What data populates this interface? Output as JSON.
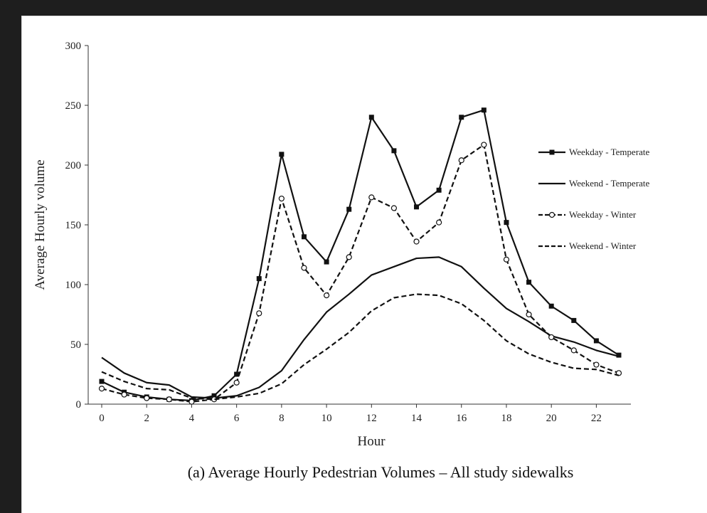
{
  "caption": "(a) Average Hourly Pedestrian Volumes – All study sidewalks",
  "chart_data": {
    "type": "line",
    "xlabel": "Hour",
    "ylabel": "Average Hourly volume",
    "xlim": [
      0,
      23
    ],
    "ylim": [
      0,
      300
    ],
    "x_ticks": [
      0,
      2,
      4,
      6,
      8,
      10,
      12,
      14,
      16,
      18,
      20,
      22
    ],
    "y_ticks": [
      0,
      50,
      100,
      150,
      200,
      250,
      300
    ],
    "grid": false,
    "legend_position": "right",
    "x": [
      0,
      1,
      2,
      3,
      4,
      5,
      6,
      7,
      8,
      9,
      10,
      11,
      12,
      13,
      14,
      15,
      16,
      17,
      18,
      19,
      20,
      21,
      22,
      23
    ],
    "series": [
      {
        "name": "Weekday - Temperate",
        "style": "solid",
        "marker": "square",
        "values": [
          19,
          10,
          6,
          4,
          3,
          7,
          25,
          105,
          209,
          140,
          119,
          163,
          240,
          212,
          165,
          179,
          240,
          246,
          152,
          102,
          82,
          70,
          53,
          41
        ]
      },
      {
        "name": "Weekend - Temperate",
        "style": "solid",
        "marker": "none",
        "values": [
          39,
          26,
          18,
          16,
          6,
          5,
          7,
          14,
          28,
          54,
          77,
          92,
          108,
          115,
          122,
          123,
          115,
          97,
          80,
          69,
          57,
          52,
          45,
          40
        ]
      },
      {
        "name": "Weekday - Winter",
        "style": "dashed",
        "marker": "circle",
        "values": [
          13,
          8,
          5,
          4,
          2,
          4,
          18,
          76,
          172,
          114,
          91,
          123,
          173,
          164,
          136,
          152,
          204,
          217,
          121,
          75,
          56,
          45,
          33,
          26
        ]
      },
      {
        "name": "Weekend - Winter",
        "style": "dashed",
        "marker": "none",
        "values": [
          27,
          19,
          13,
          12,
          5,
          4,
          6,
          9,
          17,
          33,
          46,
          60,
          78,
          89,
          92,
          91,
          84,
          70,
          53,
          42,
          35,
          30,
          29,
          24
        ]
      }
    ]
  },
  "colors": {
    "line": "#111111",
    "background": "#ffffff",
    "frame": "#1e1e1e"
  }
}
